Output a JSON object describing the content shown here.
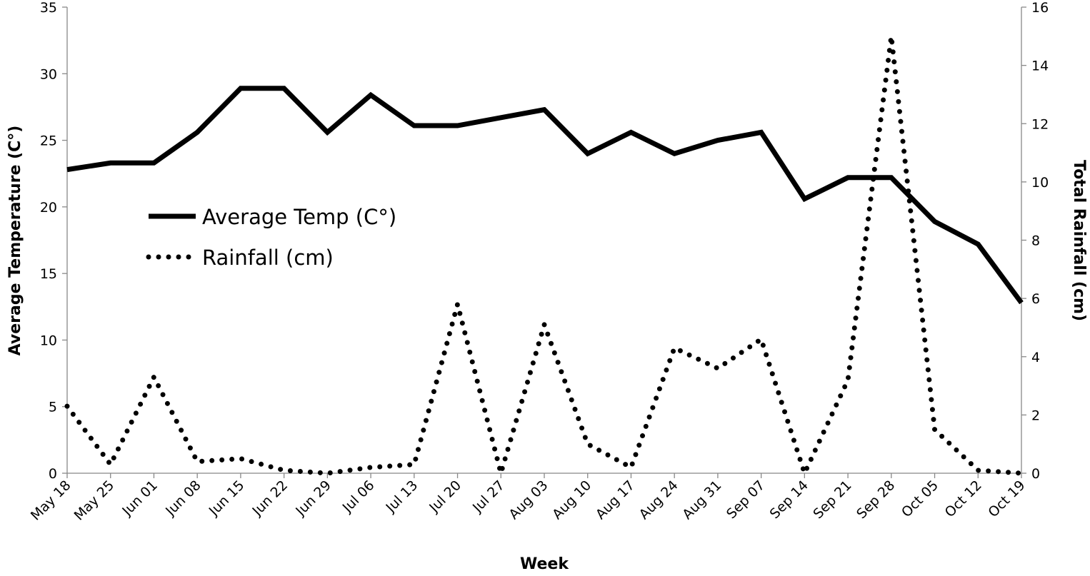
{
  "chart_data": {
    "type": "line",
    "xlabel": "Week",
    "ylabel": "Average Temperature (C°)",
    "y2label": "Total Rainfall (cm)",
    "categories": [
      "May 18",
      "May 25",
      "Jun 01",
      "Jun 08",
      "Jun 15",
      "Jun 22",
      "Jun 29",
      "Jul 06",
      "Jul 13",
      "Jul 20",
      "Jul 27",
      "Aug 03",
      "Aug 10",
      "Aug 17",
      "Aug 24",
      "Aug 31",
      "Sep 07",
      "Sep 14",
      "Sep 21",
      "Sep 28",
      "Oct 05",
      "Oct 12",
      "Oct 19"
    ],
    "series": [
      {
        "name": "Average Temp (C°)",
        "color": "#000000",
        "style": "solid",
        "values": [
          22.8,
          23.3,
          23.3,
          25.6,
          28.9,
          28.9,
          25.6,
          28.4,
          26.1,
          26.1,
          26.7,
          27.3,
          24.0,
          25.6,
          24.0,
          25.0,
          25.6,
          20.6,
          22.2,
          22.2,
          18.9,
          17.2,
          12.8
        ]
      },
      {
        "name": "Rainfall (cm)",
        "color": "#000000",
        "style": "dotted",
        "axis": "y2",
        "values": [
          2.3,
          0.3,
          3.3,
          0.4,
          0.5,
          0.1,
          0.0,
          0.2,
          0.3,
          5.8,
          0,
          5.1,
          1.0,
          0.2,
          4.3,
          3.6,
          4.6,
          0,
          3.2,
          15.0,
          1.5,
          0.1,
          0
        ]
      }
    ],
    "ylim": [
      0,
      35
    ],
    "yticks": [
      0,
      5,
      10,
      15,
      20,
      25,
      30,
      35
    ],
    "y2lim": [
      0,
      16
    ],
    "y2ticks": [
      0,
      2,
      4,
      6,
      8,
      10,
      12,
      14,
      16
    ],
    "legend": "center-left"
  }
}
